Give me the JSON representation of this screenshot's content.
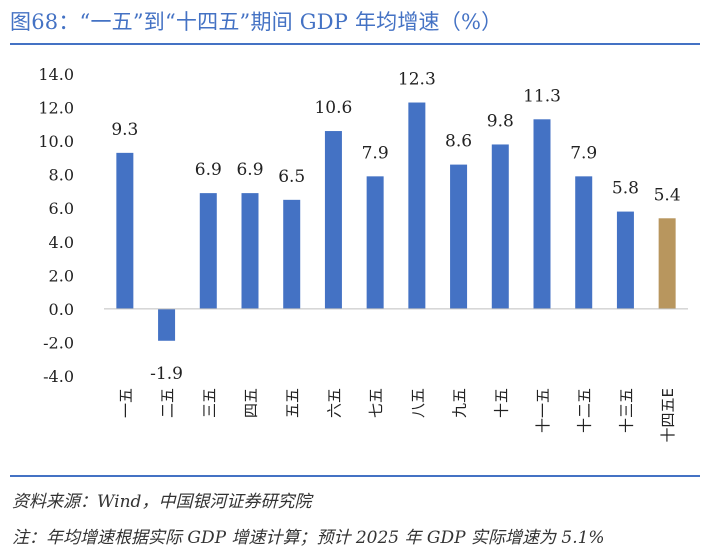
{
  "header": {
    "title": "图68：“一五”到“十四五”期间 GDP 年均增速（%）"
  },
  "footer": {
    "source": "资料来源：Wind，中国银河证券研究院",
    "note": "注：年均增速根据实际 GDP 增速计算；预计 2025 年 GDP 实际增速为 5.1%"
  },
  "chart_data": {
    "type": "bar",
    "title": "“一五”到“十四五”期间 GDP 年均增速（%）",
    "categories": [
      "一五",
      "二五",
      "三五",
      "四五",
      "五五",
      "六五",
      "七五",
      "八五",
      "九五",
      "十五",
      "十一五",
      "十二五",
      "十三五",
      "十四五E"
    ],
    "values": [
      9.3,
      -1.9,
      6.9,
      6.9,
      6.5,
      10.6,
      7.9,
      12.3,
      8.6,
      9.8,
      11.3,
      7.9,
      5.8,
      5.4
    ],
    "data_labels": [
      "9.3",
      "-1.9",
      "6.9",
      "6.9",
      "6.5",
      "10.6",
      "7.9",
      "12.3",
      "8.6",
      "9.8",
      "11.3",
      "7.9",
      "5.8",
      "5.4"
    ],
    "ytick_labels": [
      "14.0",
      "12.0",
      "10.0",
      "8.0",
      "6.0",
      "4.0",
      "2.0",
      "0.0",
      "-2.0",
      "-4.0"
    ],
    "ylim": [
      -4,
      14
    ],
    "yticks": [
      14,
      12,
      10,
      8,
      6,
      4,
      2,
      0,
      -2,
      -4
    ],
    "xlabel": "",
    "ylabel": "",
    "grid": false,
    "colors": {
      "actual": "#4472c4",
      "estimate": "#b8965e",
      "accent": "#4472c4"
    },
    "estimate_index": 13
  }
}
